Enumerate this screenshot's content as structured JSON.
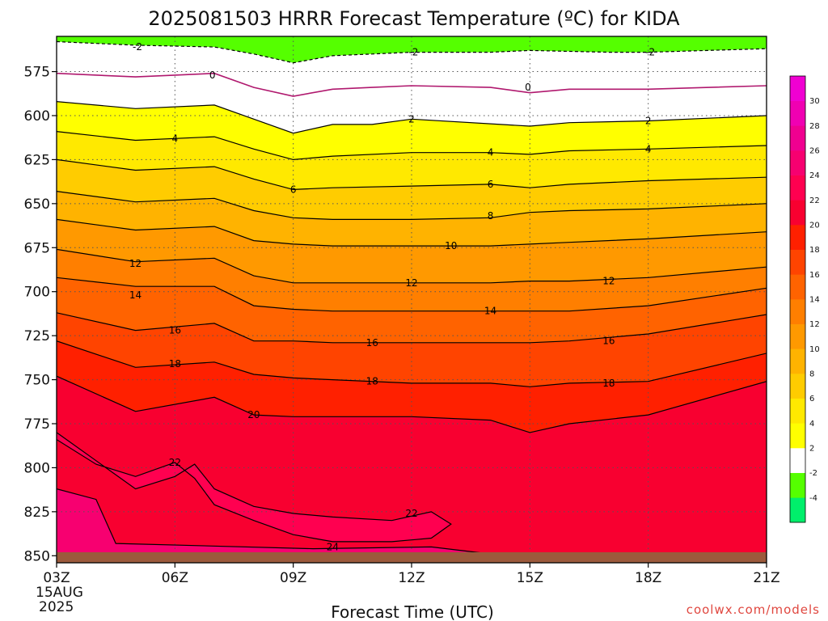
{
  "page": {
    "title": "2025081503 HRRR Forecast Temperature (ºC) for KIDA",
    "credit": "coolwx.com/models"
  },
  "chart_data": {
    "type": "heatmap",
    "title": "2025081503 HRRR Forecast Temperature (ºC) for KIDA",
    "xlabel": "Forecast Time (UTC)",
    "ylabel": "",
    "x_ticks": [
      "03Z",
      "06Z",
      "09Z",
      "12Z",
      "15Z",
      "18Z",
      "21Z"
    ],
    "x_tick_hours": [
      3,
      6,
      9,
      12,
      15,
      18,
      21
    ],
    "x_start_date_label": [
      "15AUG",
      "2025"
    ],
    "xlim": [
      3,
      21
    ],
    "y_ticks": [
      575,
      600,
      625,
      650,
      675,
      700,
      725,
      750,
      775,
      800,
      825,
      850
    ],
    "ylim": [
      555,
      854
    ],
    "y_inverted": true,
    "grid": true,
    "surface_pressure_hpa": 848,
    "colorbar": {
      "levels": [
        -6,
        -4,
        -2,
        2,
        4,
        6,
        8,
        10,
        12,
        14,
        16,
        18,
        20,
        22,
        24,
        26,
        28,
        30,
        32
      ],
      "tick_labels": [
        "-4",
        "-2",
        "2",
        "4",
        "6",
        "8",
        "10",
        "12",
        "14",
        "16",
        "18",
        "20",
        "22",
        "24",
        "26",
        "28",
        "30"
      ],
      "colors": [
        "#00ef6b",
        "#55ff00",
        "#ffffff",
        "#ffff00",
        "#ffe900",
        "#ffcc00",
        "#ffb300",
        "#ff9900",
        "#ff7f00",
        "#ff6300",
        "#ff4400",
        "#ff2000",
        "#f80030",
        "#ff0050",
        "#f70070",
        "#f00090",
        "#f000b2",
        "#f000d2"
      ]
    },
    "isotherms": [
      {
        "value": -2,
        "style": "dashed",
        "x": [
          3,
          5,
          7,
          8,
          9,
          10,
          11,
          12,
          14,
          15,
          17,
          18,
          21
        ],
        "y": [
          558,
          560,
          561,
          565,
          570,
          566,
          565,
          564,
          564,
          563,
          564,
          564,
          562
        ]
      },
      {
        "value": 0,
        "style": "solid",
        "x": [
          3,
          5,
          6,
          7,
          8,
          9,
          10,
          11,
          12,
          14,
          15,
          16,
          18,
          21
        ],
        "y": [
          576,
          578,
          577,
          576,
          584,
          589,
          585,
          584,
          583,
          584,
          587,
          585,
          585,
          583
        ]
      },
      {
        "value": 2,
        "style": "solid",
        "x": [
          3,
          5,
          7,
          8,
          9,
          10,
          11,
          12,
          15,
          16,
          18,
          21
        ],
        "y": [
          592,
          596,
          594,
          602,
          610,
          605,
          605,
          602,
          606,
          604,
          603,
          600
        ]
      },
      {
        "value": 4,
        "style": "solid",
        "x": [
          3,
          5,
          7,
          8,
          9,
          10,
          12,
          14,
          15,
          16,
          18,
          21
        ],
        "y": [
          609,
          614,
          612,
          619,
          625,
          623,
          621,
          621,
          622,
          620,
          619,
          617
        ]
      },
      {
        "value": 6,
        "style": "solid",
        "x": [
          3,
          5,
          7,
          8,
          9,
          10,
          12,
          14,
          15,
          16,
          18,
          21
        ],
        "y": [
          625,
          631,
          629,
          636,
          642,
          641,
          640,
          639,
          641,
          639,
          637,
          635
        ]
      },
      {
        "value": 8,
        "style": "solid",
        "x": [
          3,
          5,
          7,
          8,
          9,
          10,
          12,
          14,
          15,
          16,
          18,
          21
        ],
        "y": [
          643,
          649,
          647,
          654,
          658,
          659,
          659,
          658,
          655,
          654,
          653,
          650
        ]
      },
      {
        "value": 10,
        "style": "solid",
        "x": [
          3,
          5,
          7,
          8,
          9,
          10,
          12,
          14,
          15,
          16,
          18,
          21
        ],
        "y": [
          659,
          665,
          663,
          671,
          673,
          674,
          674,
          674,
          673,
          672,
          670,
          666
        ]
      },
      {
        "value": 12,
        "style": "solid",
        "x": [
          3,
          5,
          7,
          8,
          9,
          10,
          12,
          14,
          15,
          16,
          18,
          21
        ],
        "y": [
          676,
          683,
          681,
          691,
          695,
          695,
          695,
          695,
          694,
          694,
          692,
          686
        ]
      },
      {
        "value": 14,
        "style": "solid",
        "x": [
          3,
          5,
          7,
          8,
          9,
          10,
          12,
          14,
          15,
          16,
          18,
          21
        ],
        "y": [
          692,
          697,
          697,
          708,
          710,
          711,
          711,
          711,
          711,
          711,
          708,
          698
        ]
      },
      {
        "value": 16,
        "style": "solid",
        "x": [
          3,
          5,
          7,
          8,
          9,
          10,
          12,
          14,
          15,
          16,
          18,
          21
        ],
        "y": [
          712,
          722,
          718,
          728,
          728,
          729,
          729,
          729,
          729,
          728,
          724,
          713
        ]
      },
      {
        "value": 18,
        "style": "solid",
        "x": [
          3,
          5,
          7,
          8,
          9,
          10,
          12,
          14,
          15,
          16,
          18,
          21
        ],
        "y": [
          728,
          743,
          740,
          747,
          749,
          750,
          752,
          752,
          754,
          752,
          751,
          735
        ]
      },
      {
        "value": 20,
        "style": "solid",
        "x": [
          3,
          5,
          7,
          8,
          9,
          10,
          12,
          14,
          15,
          16,
          18,
          21
        ],
        "y": [
          748,
          768,
          760,
          770,
          771,
          771,
          771,
          773,
          780,
          775,
          770,
          751
        ]
      },
      {
        "value": 22,
        "style": "solid",
        "x": [
          3,
          5,
          6,
          6.5,
          7,
          8,
          9,
          10,
          11.5,
          12.5,
          13,
          12.5,
          11.5,
          10,
          9,
          8,
          7,
          6.5,
          6,
          5,
          4,
          3
        ],
        "y": [
          780,
          812,
          805,
          798,
          812,
          822,
          826,
          828,
          830,
          825,
          832,
          840,
          842,
          842,
          838,
          830,
          821,
          806,
          797,
          805,
          798,
          784
        ]
      },
      {
        "value": 24,
        "style": "solid",
        "x": [
          3,
          4,
          4.5,
          9.5,
          12.5,
          14,
          16,
          17.5,
          21
        ],
        "y": [
          812,
          818,
          843,
          846,
          845,
          849,
          851,
          851,
          851
        ]
      }
    ],
    "contour_labels": [
      {
        "text": "-2",
        "x": 5.05,
        "y": 561
      },
      {
        "text": "0",
        "x": 6.95,
        "y": 577
      },
      {
        "text": "-2",
        "x": 12.05,
        "y": 564
      },
      {
        "text": "-2",
        "x": 18.05,
        "y": 564
      },
      {
        "text": "0",
        "x": 14.95,
        "y": 584
      },
      {
        "text": "2",
        "x": 12.0,
        "y": 602
      },
      {
        "text": "2",
        "x": 18.0,
        "y": 603
      },
      {
        "text": "4",
        "x": 6.0,
        "y": 613
      },
      {
        "text": "4",
        "x": 14.0,
        "y": 621
      },
      {
        "text": "4",
        "x": 18.0,
        "y": 619
      },
      {
        "text": "6",
        "x": 9.0,
        "y": 642
      },
      {
        "text": "6",
        "x": 14.0,
        "y": 639
      },
      {
        "text": "8",
        "x": 14.0,
        "y": 657
      },
      {
        "text": "10",
        "x": 13.0,
        "y": 674
      },
      {
        "text": "12",
        "x": 5.0,
        "y": 684
      },
      {
        "text": "12",
        "x": 12.0,
        "y": 695
      },
      {
        "text": "12",
        "x": 17.0,
        "y": 694
      },
      {
        "text": "14",
        "x": 5.0,
        "y": 702
      },
      {
        "text": "14",
        "x": 14.0,
        "y": 711
      },
      {
        "text": "16",
        "x": 6.0,
        "y": 722
      },
      {
        "text": "16",
        "x": 11.0,
        "y": 729
      },
      {
        "text": "16",
        "x": 17.0,
        "y": 728
      },
      {
        "text": "18",
        "x": 6.0,
        "y": 741
      },
      {
        "text": "18",
        "x": 11.0,
        "y": 751
      },
      {
        "text": "18",
        "x": 17.0,
        "y": 752
      },
      {
        "text": "20",
        "x": 8.0,
        "y": 770
      },
      {
        "text": "22",
        "x": 6.0,
        "y": 797
      },
      {
        "text": "22",
        "x": 12.0,
        "y": 826
      },
      {
        "text": "24",
        "x": 10.0,
        "y": 845
      }
    ]
  }
}
